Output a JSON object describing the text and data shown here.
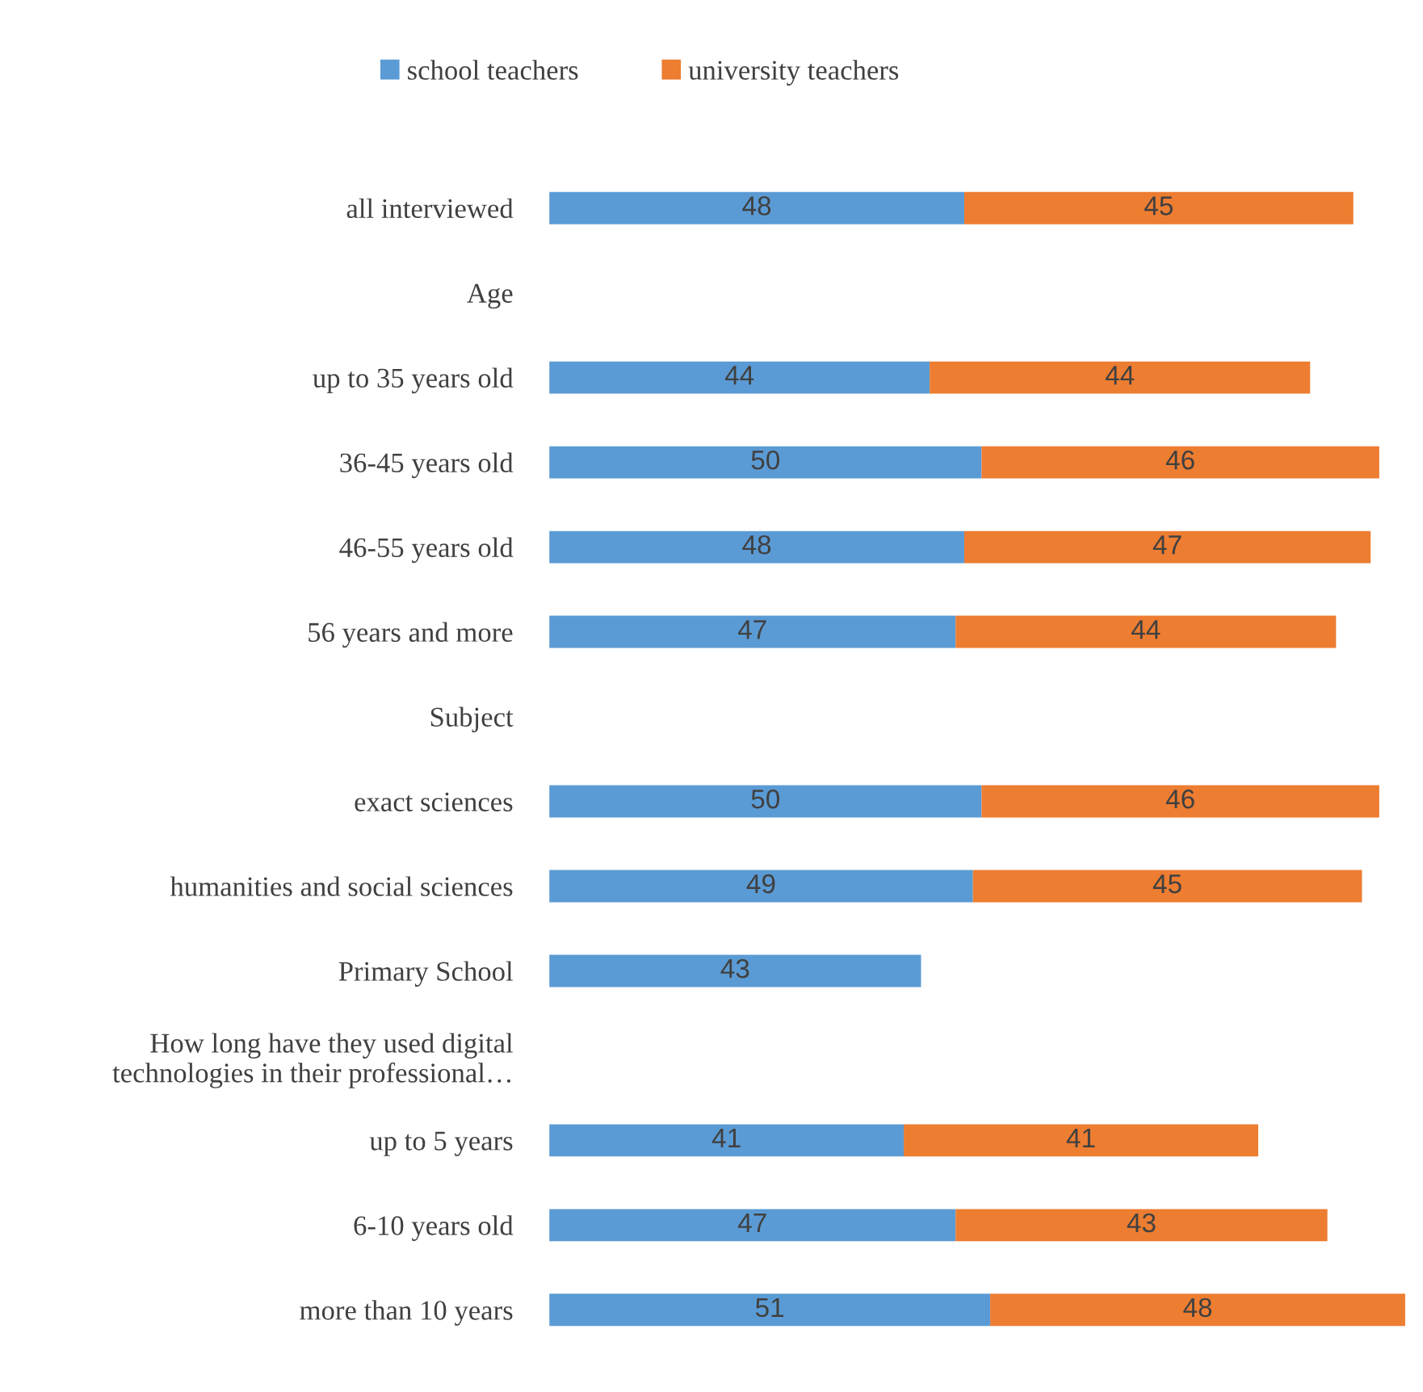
{
  "chart_data": {
    "type": "bar",
    "orientation": "horizontal",
    "stacked": true,
    "legend": "top",
    "data_labels": true,
    "categories": [
      "all interviewed",
      "Age",
      "up to 35 years old",
      "36-45 years old",
      "46-55 years old",
      "56 years and more",
      "Subject",
      "exact sciences",
      "humanities and social sciences",
      "Primary School",
      "How long have they used digital\ntechnologies in their professional…",
      "up to 5 years",
      "6-10 years old",
      "more than 10 years"
    ],
    "series": [
      {
        "name": "school teachers",
        "color": "#5b9bd5",
        "values": [
          48,
          null,
          44,
          50,
          48,
          47,
          null,
          50,
          49,
          43,
          null,
          41,
          47,
          51
        ]
      },
      {
        "name": "university teachers",
        "color": "#ed7d31",
        "values": [
          45,
          null,
          44,
          46,
          47,
          44,
          null,
          46,
          45,
          null,
          null,
          41,
          43,
          48
        ]
      }
    ]
  }
}
